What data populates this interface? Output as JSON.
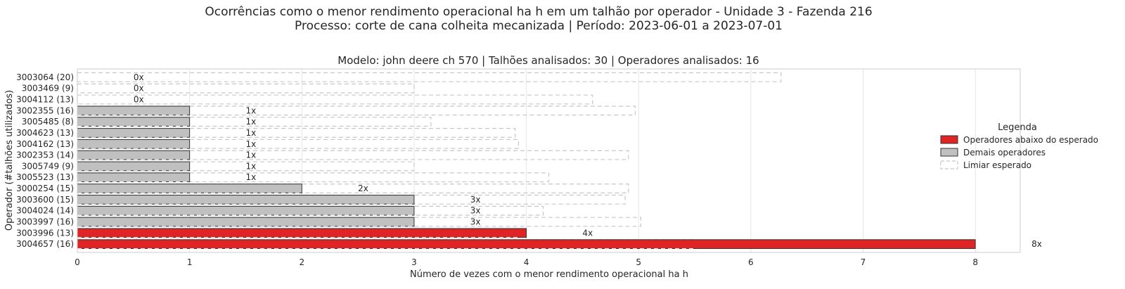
{
  "chart_data": {
    "type": "bar",
    "orientation": "horizontal",
    "title": "Ocorrências como o menor rendimento operacional ha h em um talhão por operador - Unidade 3 - Fazenda 216",
    "title_line2": "Processo: corte de cana colheita mecanizada | Período: 2023-06-01 a 2023-07-01",
    "subtitle": "Modelo: john deere ch 570 | Talhões analisados: 30 | Operadores analisados: 16",
    "xlabel": "Número de vezes com o menor rendimento operacional ha h",
    "ylabel": "Operador (#talhões utilizados)",
    "xlim": [
      0,
      8.4
    ],
    "xticks": [
      0,
      1,
      2,
      3,
      4,
      5,
      6,
      7,
      8
    ],
    "grid": true,
    "categories": [
      "3003064 (20)",
      "3003469 (9)",
      "3004112 (13)",
      "3002355 (16)",
      "3005485 (8)",
      "3004623 (13)",
      "3004162 (13)",
      "3002353 (14)",
      "3005749 (9)",
      "3005523 (13)",
      "3000254 (15)",
      "3003600 (15)",
      "3004024 (14)",
      "3003997 (16)",
      "3003996 (13)",
      "3004657 (16)"
    ],
    "values": [
      0,
      0,
      0,
      1,
      1,
      1,
      1,
      1,
      1,
      1,
      2,
      3,
      3,
      3,
      4,
      8
    ],
    "value_labels": [
      "0x",
      "0x",
      "0x",
      "1x",
      "1x",
      "1x",
      "1x",
      "1x",
      "1x",
      "1x",
      "2x",
      "3x",
      "3x",
      "3x",
      "4x",
      "8x"
    ],
    "thresholds": [
      6.27,
      3.0,
      4.59,
      4.97,
      3.15,
      3.9,
      3.93,
      4.91,
      3.0,
      4.2,
      4.91,
      4.88,
      4.15,
      5.02,
      3.93,
      5.5
    ],
    "below_expected": [
      false,
      false,
      false,
      false,
      false,
      false,
      false,
      false,
      false,
      false,
      false,
      false,
      false,
      false,
      true,
      true
    ],
    "colors": {
      "below": "#e02424",
      "other": "#c0c0c0",
      "threshold": "#c8c8c8",
      "grid": "#e6e6e6",
      "frame": "#cccccc"
    },
    "legend": {
      "title": "Legenda",
      "position": "right",
      "entries": [
        {
          "label": "Operadores abaixo do esperado",
          "kind": "below"
        },
        {
          "label": "Demais operadores",
          "kind": "other"
        },
        {
          "label": "Limiar esperado",
          "kind": "threshold"
        }
      ]
    }
  }
}
